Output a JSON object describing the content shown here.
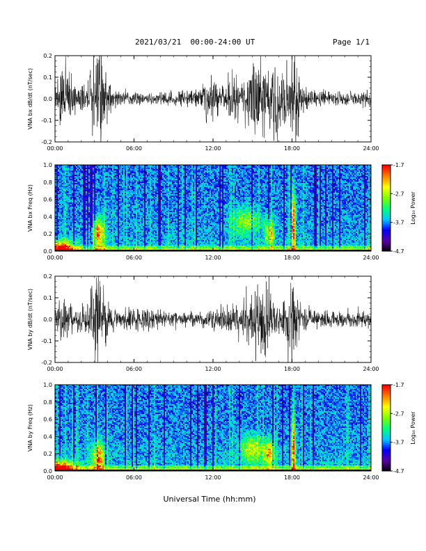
{
  "header": {
    "title": "2021/03/21  00:00-24:00 UT",
    "page": "Page 1/1"
  },
  "x_axis_label": "Universal Time (hh:mm)",
  "colorbar": {
    "label": "Log₁₀ Power",
    "ticks": [
      "-1.7",
      "-2.7",
      "-3.7",
      "-4.7"
    ],
    "range": [
      -4.7,
      -1.7
    ],
    "colormap": [
      "#000000",
      "#5a00a0",
      "#0000ff",
      "#00c8ff",
      "#00ff80",
      "#80ff00",
      "#ffff00",
      "#ff8000",
      "#ff0000"
    ]
  },
  "chart_data": [
    {
      "type": "line",
      "name": "bx-derivative",
      "ylabel": "VNA bx dB/dt (nT/sec)",
      "xlim": [
        "00:00",
        "24:00"
      ],
      "xticks": [
        "00:00",
        "06:00",
        "12:00",
        "18:00",
        "24:00"
      ],
      "ylim": [
        -0.2,
        0.2
      ],
      "yticks": [
        "0.2",
        "0.1",
        "0.0",
        "-0.1",
        "-0.2"
      ],
      "envelope": {
        "t_hours": [
          0,
          0.5,
          1.0,
          1.5,
          2.0,
          2.5,
          3.0,
          3.3,
          3.6,
          4.0,
          4.5,
          5.0,
          6.0,
          7.0,
          8.0,
          9.0,
          10.0,
          11.0,
          11.5,
          12.0,
          12.5,
          13.0,
          13.5,
          14.0,
          14.5,
          15.0,
          15.5,
          16.0,
          16.4,
          16.8,
          17.2,
          17.6,
          18.0,
          18.3,
          18.6,
          19.0,
          19.5,
          20.0,
          21.0,
          22.0,
          23.0,
          23.5,
          24.0
        ],
        "amplitude": [
          0.05,
          0.12,
          0.1,
          0.06,
          0.05,
          0.06,
          0.16,
          0.2,
          0.22,
          0.07,
          0.03,
          0.03,
          0.025,
          0.02,
          0.025,
          0.03,
          0.03,
          0.04,
          0.09,
          0.1,
          0.05,
          0.06,
          0.11,
          0.06,
          0.07,
          0.12,
          0.16,
          0.14,
          0.12,
          0.19,
          0.09,
          0.12,
          0.16,
          0.21,
          0.07,
          0.04,
          0.04,
          0.03,
          0.03,
          0.025,
          0.02,
          0.035,
          0.02
        ]
      }
    },
    {
      "type": "heatmap",
      "name": "bx-spectrogram",
      "ylabel": "VNA bx Freq (Hz)",
      "xlim": [
        "00:00",
        "24:00"
      ],
      "xticks": [
        "00:00",
        "06:00",
        "12:00",
        "18:00",
        "24:00"
      ],
      "ylim": [
        0.0,
        1.0
      ],
      "yticks": [
        "1.0",
        "0.8",
        "0.6",
        "0.4",
        "0.2",
        "0.0"
      ],
      "hotspots": [
        {
          "t_hours": 3.3,
          "f_hz": 0.2,
          "level": 0.55,
          "width_h": 0.9,
          "height_hz": 0.35
        },
        {
          "t_hours": 0.3,
          "f_hz": 0.05,
          "level": 0.6,
          "width_h": 2.5,
          "height_hz": 0.15
        },
        {
          "t_hours": 14.5,
          "f_hz": 0.35,
          "level": 0.3,
          "width_h": 2.0,
          "height_hz": 0.3
        },
        {
          "t_hours": 16.3,
          "f_hz": 0.2,
          "level": 0.45,
          "width_h": 0.7,
          "height_hz": 0.3
        },
        {
          "t_hours": 18.1,
          "f_hz": 0.3,
          "level": 0.65,
          "width_h": 0.3,
          "height_hz": 0.75
        }
      ]
    },
    {
      "type": "line",
      "name": "by-derivative",
      "ylabel": "VNA by dB/dt (nT/sec)",
      "xlim": [
        "00:00",
        "24:00"
      ],
      "xticks": [
        "00:00",
        "06:00",
        "12:00",
        "18:00",
        "24:00"
      ],
      "ylim": [
        -0.2,
        0.2
      ],
      "yticks": [
        "0.2",
        "0.1",
        "0.0",
        "-0.1",
        "-0.2"
      ],
      "envelope": {
        "t_hours": [
          0,
          0.5,
          1.0,
          1.5,
          2.0,
          2.5,
          3.0,
          3.3,
          3.6,
          4.0,
          4.5,
          5.0,
          6.0,
          7.0,
          8.0,
          9.0,
          10.0,
          11.0,
          11.5,
          12.0,
          12.5,
          13.0,
          13.5,
          14.0,
          14.5,
          15.0,
          15.5,
          16.0,
          16.4,
          16.8,
          17.2,
          17.6,
          18.0,
          18.3,
          18.6,
          19.0,
          19.5,
          20.0,
          21.0,
          22.0,
          23.0,
          23.5,
          24.0
        ],
        "amplitude": [
          0.04,
          0.09,
          0.06,
          0.04,
          0.05,
          0.08,
          0.18,
          0.21,
          0.14,
          0.07,
          0.04,
          0.04,
          0.05,
          0.04,
          0.04,
          0.03,
          0.03,
          0.03,
          0.03,
          0.04,
          0.04,
          0.04,
          0.05,
          0.06,
          0.08,
          0.1,
          0.14,
          0.2,
          0.13,
          0.06,
          0.05,
          0.08,
          0.22,
          0.21,
          0.07,
          0.05,
          0.04,
          0.04,
          0.03,
          0.03,
          0.03,
          0.03,
          0.02
        ]
      }
    },
    {
      "type": "heatmap",
      "name": "by-spectrogram",
      "ylabel": "VNA by Freq (Hz)",
      "xlim": [
        "00:00",
        "24:00"
      ],
      "xticks": [
        "00:00",
        "06:00",
        "12:00",
        "18:00",
        "24:00"
      ],
      "ylim": [
        0.0,
        1.0
      ],
      "yticks": [
        "1.0",
        "0.8",
        "0.6",
        "0.4",
        "0.2",
        "0.0"
      ],
      "hotspots": [
        {
          "t_hours": 3.3,
          "f_hz": 0.15,
          "level": 0.6,
          "width_h": 0.9,
          "height_hz": 0.35
        },
        {
          "t_hours": 0.3,
          "f_hz": 0.05,
          "level": 0.6,
          "width_h": 2.5,
          "height_hz": 0.15
        },
        {
          "t_hours": 15.0,
          "f_hz": 0.25,
          "level": 0.35,
          "width_h": 2.0,
          "height_hz": 0.3
        },
        {
          "t_hours": 16.3,
          "f_hz": 0.2,
          "level": 0.45,
          "width_h": 0.7,
          "height_hz": 0.3
        },
        {
          "t_hours": 18.1,
          "f_hz": 0.25,
          "level": 0.6,
          "width_h": 0.3,
          "height_hz": 0.7
        }
      ]
    }
  ]
}
